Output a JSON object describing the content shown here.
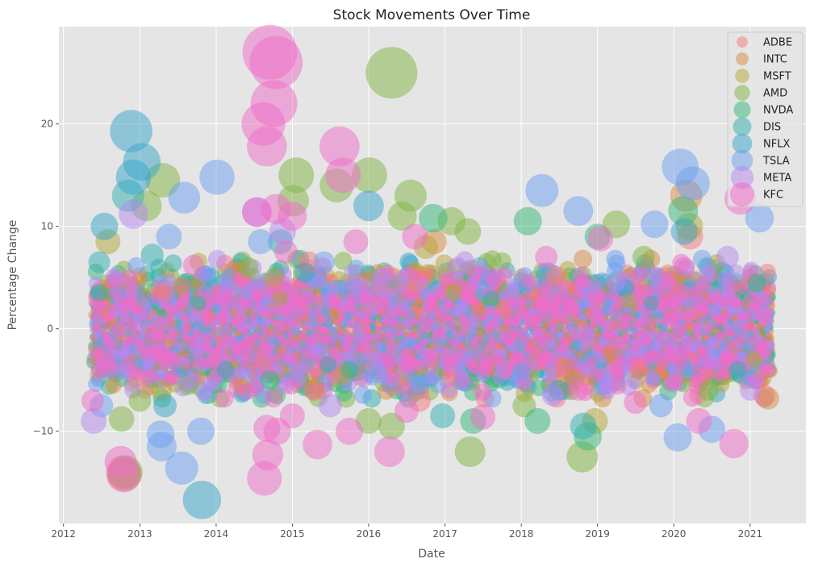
{
  "chart_data": {
    "type": "scatter",
    "title": "Stock Movements Over Time",
    "xlabel": "Date",
    "ylabel": "Percentage Change",
    "xlim": [
      "2011-12-10",
      "2021-09-25"
    ],
    "ylim": [
      -19,
      29.5
    ],
    "x_ticks": [
      "2012",
      "2013",
      "2014",
      "2015",
      "2016",
      "2017",
      "2018",
      "2019",
      "2020",
      "2021"
    ],
    "y_ticks": [
      -10,
      0,
      10,
      20
    ],
    "grid": true,
    "legend_position": "top-right",
    "marker_size_encoding": "bubble area grows with |percentage change|",
    "series": [
      {
        "name": "ADBE",
        "color": "#f7797b",
        "points": [
          [
            "2012-10-12",
            -14.0
          ],
          [
            "2015-03-20",
            6.5
          ],
          [
            "2016-09-01",
            -7.0
          ],
          [
            "2018-06-15",
            5.2
          ],
          [
            "2020-03-20",
            9.0
          ],
          [
            "2021-03-10",
            -6.5
          ],
          [
            "2013-05-01",
            3.5
          ],
          [
            "2014-08-10",
            -3.2
          ],
          [
            "2017-10-05",
            2.1
          ],
          [
            "2019-07-22",
            -4.0
          ]
        ]
      },
      {
        "name": "INTC",
        "color": "#d9893f",
        "points": [
          [
            "2012-10-20",
            -14.2
          ],
          [
            "2020-03-01",
            13.0
          ],
          [
            "2016-11-10",
            8.5
          ],
          [
            "2015-04-15",
            -6.0
          ],
          [
            "2021-03-28",
            -6.8
          ],
          [
            "2018-09-12",
            -5.0
          ],
          [
            "2013-07-20",
            4.2
          ],
          [
            "2014-11-03",
            3.0
          ],
          [
            "2019-03-05",
            -2.5
          ],
          [
            "2017-06-15",
            1.8
          ]
        ]
      },
      {
        "name": "MSFT",
        "color": "#b3a635",
        "points": [
          [
            "2012-08-01",
            8.5
          ],
          [
            "2013-04-15",
            -6.0
          ],
          [
            "2014-10-05",
            5.0
          ],
          [
            "2016-10-01",
            8.0
          ],
          [
            "2018-12-20",
            -9.0
          ],
          [
            "2020-03-16",
            10.0
          ],
          [
            "2017-02-10",
            3.5
          ],
          [
            "2015-09-01",
            -4.5
          ],
          [
            "2019-06-01",
            2.8
          ],
          [
            "2021-01-20",
            -3.0
          ]
        ]
      },
      {
        "name": "AMD",
        "color": "#7fb344",
        "points": [
          [
            "2016-04-20",
            25.0
          ],
          [
            "2015-01-20",
            15.0
          ],
          [
            "2013-04-20",
            14.5
          ],
          [
            "2015-08-01",
            14.0
          ],
          [
            "2016-01-05",
            15.0
          ],
          [
            "2016-07-20",
            13.0
          ],
          [
            "2017-05-01",
            -12.0
          ],
          [
            "2018-10-20",
            -12.5
          ],
          [
            "2012-10-25",
            -14.0
          ],
          [
            "2015-01-05",
            12.5
          ],
          [
            "2013-02-01",
            12.0
          ],
          [
            "2016-06-10",
            11.0
          ],
          [
            "2017-02-01",
            10.5
          ],
          [
            "2019-04-01",
            10.2
          ],
          [
            "2012-10-05",
            -8.8
          ],
          [
            "2016-01-01",
            -9.0
          ],
          [
            "2016-04-20",
            -9.5
          ],
          [
            "2013-01-01",
            -7.0
          ],
          [
            "2018-01-15",
            -7.5
          ],
          [
            "2017-04-20",
            9.5
          ],
          [
            "2019-08-10",
            7.0
          ],
          [
            "2014-06-01",
            6.0
          ],
          [
            "2013-08-20",
            -5.5
          ],
          [
            "2020-06-15",
            -6.0
          ]
        ]
      },
      {
        "name": "NVDA",
        "color": "#35b779",
        "points": [
          [
            "2018-02-01",
            10.5
          ],
          [
            "2016-11-05",
            10.8
          ],
          [
            "2017-05-15",
            -9.0
          ],
          [
            "2018-11-15",
            -10.5
          ],
          [
            "2020-02-15",
            11.5
          ],
          [
            "2018-03-20",
            -9.0
          ],
          [
            "2019-01-01",
            9.0
          ],
          [
            "2014-09-15",
            -5.0
          ],
          [
            "2012-06-20",
            3.5
          ],
          [
            "2015-10-01",
            -4.0
          ],
          [
            "2013-10-10",
            2.5
          ],
          [
            "2021-02-01",
            4.5
          ]
        ]
      },
      {
        "name": "DIS",
        "color": "#2fb0b0",
        "points": [
          [
            "2012-11-05",
            13.0
          ],
          [
            "2016-12-20",
            -8.5
          ],
          [
            "2014-11-05",
            8.5
          ],
          [
            "2012-06-20",
            6.5
          ],
          [
            "2018-10-25",
            -9.5
          ],
          [
            "2013-03-01",
            7.2
          ],
          [
            "2015-06-20",
            -3.5
          ],
          [
            "2019-09-15",
            2.5
          ],
          [
            "2020-11-01",
            -4.0
          ],
          [
            "2017-08-10",
            3.0
          ]
        ]
      },
      {
        "name": "NFLX",
        "color": "#35a6c9",
        "points": [
          [
            "2012-11-20",
            19.3
          ],
          [
            "2013-01-10",
            16.3
          ],
          [
            "2012-12-01",
            14.8
          ],
          [
            "2013-10-25",
            -16.7
          ],
          [
            "2012-07-15",
            10.0
          ],
          [
            "2016-01-01",
            12.0
          ],
          [
            "2013-05-01",
            -7.5
          ],
          [
            "2020-02-20",
            9.5
          ],
          [
            "2018-07-01",
            -6.0
          ],
          [
            "2015-03-01",
            5.5
          ],
          [
            "2014-02-15",
            -4.0
          ],
          [
            "2019-05-15",
            4.0
          ]
        ]
      },
      {
        "name": "TSLA",
        "color": "#6c9ff2",
        "points": [
          [
            "2014-01-05",
            14.8
          ],
          [
            "2013-07-20",
            -13.6
          ],
          [
            "2013-04-15",
            -11.5
          ],
          [
            "2013-08-01",
            12.8
          ],
          [
            "2018-04-10",
            13.5
          ],
          [
            "2020-02-01",
            15.8
          ],
          [
            "2020-04-01",
            14.2
          ],
          [
            "2013-10-20",
            -10.0
          ],
          [
            "2013-04-10",
            -10.3
          ],
          [
            "2020-01-20",
            -10.6
          ],
          [
            "2013-05-20",
            9.0
          ],
          [
            "2012-07-01",
            -7.5
          ],
          [
            "2014-08-01",
            8.5
          ],
          [
            "2018-10-01",
            11.5
          ],
          [
            "2020-07-01",
            -9.8
          ],
          [
            "2021-02-15",
            10.8
          ],
          [
            "2019-10-01",
            10.2
          ],
          [
            "2019-11-01",
            -7.5
          ],
          [
            "2015-06-01",
            6.5
          ],
          [
            "2016-09-01",
            -5.5
          ],
          [
            "2017-08-01",
            4.8
          ],
          [
            "2018-01-01",
            -4.2
          ]
        ]
      },
      {
        "name": "META",
        "color": "#b388f0",
        "points": [
          [
            "2012-05-25",
            -9.0
          ],
          [
            "2012-12-01",
            11.2
          ],
          [
            "2014-07-15",
            11.4
          ],
          [
            "2014-11-15",
            9.5
          ],
          [
            "2015-07-01",
            -7.5
          ],
          [
            "2017-03-01",
            6.0
          ],
          [
            "2018-06-01",
            -6.5
          ],
          [
            "2020-09-15",
            7.0
          ],
          [
            "2021-01-01",
            -6.0
          ],
          [
            "2016-03-01",
            5.0
          ],
          [
            "2013-08-15",
            -5.0
          ],
          [
            "2019-04-01",
            4.5
          ]
        ]
      },
      {
        "name": "KFC",
        "color": "#f06cc8",
        "points": [
          [
            "2014-09-15",
            27.0
          ],
          [
            "2014-10-15",
            26.0
          ],
          [
            "2014-10-05",
            22.0
          ],
          [
            "2014-08-15",
            20.0
          ],
          [
            "2014-09-01",
            17.8
          ],
          [
            "2015-08-15",
            17.8
          ],
          [
            "2015-09-01",
            15.0
          ],
          [
            "2014-08-20",
            -14.6
          ],
          [
            "2014-09-05",
            -12.3
          ],
          [
            "2012-10-01",
            -13.0
          ],
          [
            "2012-10-15",
            -14.3
          ],
          [
            "2016-04-10",
            -12.0
          ],
          [
            "2015-05-01",
            -11.3
          ],
          [
            "2020-10-15",
            -11.2
          ],
          [
            "2014-07-15",
            11.4
          ],
          [
            "2014-10-15",
            11.7
          ],
          [
            "2015-01-01",
            11.0
          ],
          [
            "2020-11-15",
            12.7
          ],
          [
            "2014-10-20",
            -10.0
          ],
          [
            "2014-09-01",
            -9.7
          ],
          [
            "2015-10-01",
            -10.0
          ],
          [
            "2015-01-01",
            -8.5
          ],
          [
            "2016-07-01",
            -8.0
          ],
          [
            "2017-07-01",
            -8.6
          ],
          [
            "2020-05-01",
            -9.0
          ],
          [
            "2019-07-01",
            -7.2
          ],
          [
            "2013-09-15",
            6.2
          ],
          [
            "2016-08-10",
            9.0
          ],
          [
            "2018-05-01",
            7.0
          ],
          [
            "2019-01-15",
            8.8
          ],
          [
            "2015-11-01",
            8.5
          ],
          [
            "2012-05-20",
            -7.0
          ],
          [
            "2014-12-01",
            7.5
          ],
          [
            "2017-09-01",
            5.0
          ],
          [
            "2018-10-01",
            -6.0
          ],
          [
            "2020-02-20",
            6.0
          ]
        ]
      }
    ]
  }
}
